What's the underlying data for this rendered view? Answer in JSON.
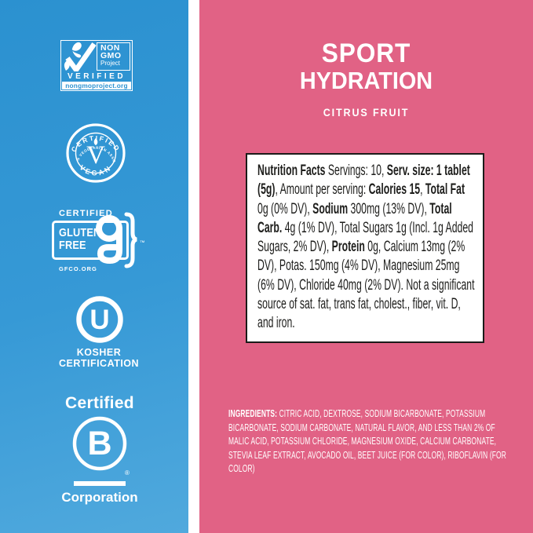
{
  "colors": {
    "blue_top": "#2B91D0",
    "blue_bottom": "#50A9DD",
    "pink": "#E16285",
    "nutrition_text": "#1D1D1B",
    "logo_white": "#FFFFFF",
    "nongmo_url_blue": "#2E93D2"
  },
  "left_panel": {
    "non_gmo": {
      "icon": "butterfly-checkmark",
      "non": "NON",
      "gmo": "GMO",
      "project": "Project",
      "verified": "VERIFIED",
      "url": "nongmoproject.org"
    },
    "vegan": {
      "top": "CERTIFIED",
      "ring": "AMERICAN VEGETARIAN ASSOCIATION",
      "letter": "V",
      "bottom": "VEGAN"
    },
    "gluten_free": {
      "certified": "CERTIFIED",
      "word1": "GLUTEN",
      "word2": "FREE",
      "tm": "™",
      "org": "GFCO.ORG"
    },
    "kosher": {
      "letter": "U",
      "line1": "KOSHER",
      "line2": "CERTIFICATION"
    },
    "b_corp": {
      "certified": "Certified",
      "letter": "B",
      "reg": "®",
      "corporation": "Corporation"
    }
  },
  "right_panel": {
    "title_line1": "SPORT",
    "title_line2": "HYDRATION",
    "flavor": "CITRUS FRUIT",
    "nutrition_segments": [
      {
        "text": "Nutrition Facts ",
        "bold": true
      },
      {
        "text": "Servings: 10, ",
        "bold": false
      },
      {
        "text": "Serv. size: 1 tablet (5g)",
        "bold": true
      },
      {
        "text": ", Amount per serving: ",
        "bold": false
      },
      {
        "text": "Calories 15",
        "bold": true
      },
      {
        "text": ", ",
        "bold": false
      },
      {
        "text": "Total Fat ",
        "bold": true
      },
      {
        "text": "0g (0% DV), ",
        "bold": false
      },
      {
        "text": "Sodium ",
        "bold": true
      },
      {
        "text": "300mg (13% DV), ",
        "bold": false
      },
      {
        "text": "Total Carb. ",
        "bold": true
      },
      {
        "text": "4g (1% DV), Total Sugars 1g (Incl. 1g Added Sugars, 2% DV), ",
        "bold": false
      },
      {
        "text": "Protein ",
        "bold": true
      },
      {
        "text": "0g, Calcium 13mg (2% DV), Potas. 150mg (4% DV), Magnesium 25mg (6% DV), Chloride 40mg (2% DV). Not a significant source of sat. fat, trans fat, cholest., fiber, vit. D, and iron.",
        "bold": false
      }
    ],
    "ingredients_segments": [
      {
        "text": "INGREDIENTS: ",
        "bold": true
      },
      {
        "text": "CITRIC ACID, DEXTROSE, SODIUM BICARBONATE, POTASSIUM BICARBONATE, SODIUM CARBONATE, NATURAL FLAVOR, AND LESS THAN 2% OF MALIC ACID, POTASSIUM CHLORIDE, MAGNESIUM OXIDE, CALCIUM CARBONATE, STEVIA LEAF EXTRACT, AVOCADO OIL, BEET JUICE (FOR COLOR), RIBOFLAVIN (FOR COLOR)",
        "bold": false
      }
    ]
  }
}
